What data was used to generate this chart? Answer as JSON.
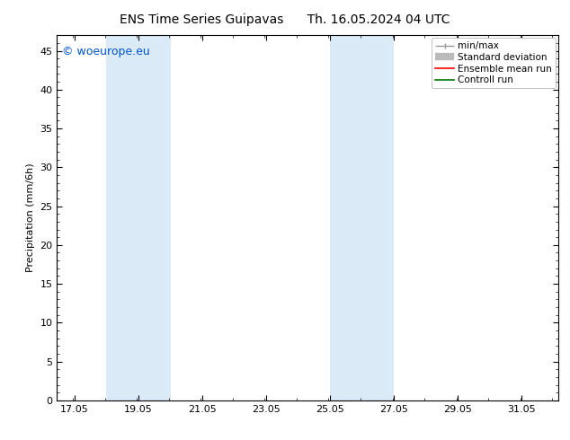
{
  "title_left": "ENS Time Series Guipavas",
  "title_right": "Th. 16.05.2024 04 UTC",
  "ylabel": "Precipitation (mm/6h)",
  "watermark": "© woeurope.eu",
  "watermark_color": "#0055cc",
  "xlim_start": 16.5,
  "xlim_end": 32.2,
  "ylim": [
    0,
    47
  ],
  "yticks": [
    0,
    5,
    10,
    15,
    20,
    25,
    30,
    35,
    40,
    45
  ],
  "xticks": [
    17.05,
    19.05,
    21.05,
    23.05,
    25.05,
    27.05,
    29.05,
    31.05
  ],
  "xtick_labels": [
    "17.05",
    "19.05",
    "21.05",
    "23.05",
    "25.05",
    "27.05",
    "29.05",
    "31.05"
  ],
  "shaded_bands": [
    {
      "x_start": 18.05,
      "x_end": 20.05
    },
    {
      "x_start": 25.05,
      "x_end": 27.05
    }
  ],
  "shade_color": "#daeaf7",
  "background_color": "#ffffff",
  "legend_items": [
    {
      "label": "min/max",
      "color": "#999999"
    },
    {
      "label": "Standard deviation",
      "color": "#bbbbbb"
    },
    {
      "label": "Ensemble mean run",
      "color": "#ff0000"
    },
    {
      "label": "Controll run",
      "color": "#007700"
    }
  ],
  "title_fontsize": 10,
  "label_fontsize": 8,
  "tick_fontsize": 8,
  "legend_fontsize": 7.5,
  "watermark_fontsize": 9
}
